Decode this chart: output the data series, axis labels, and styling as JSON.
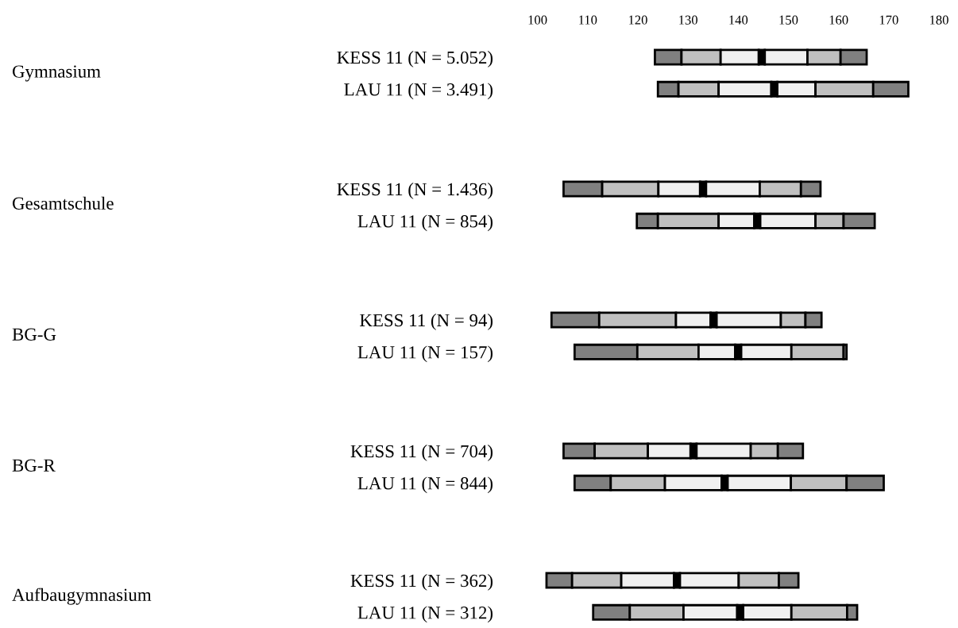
{
  "chart_data": [
    {
      "type": "bar",
      "orientation": "horizontal",
      "ylabel": "Gymnasium",
      "categories": [
        "KESS 11 (N = 5.052)",
        "LAU 11 (N = 3.491)"
      ],
      "series": [
        {
          "color": "#808080",
          "base": [
            123.4,
            124.0
          ],
          "values": [
            5.3,
            4.1
          ]
        },
        {
          "color": "#c0c0c0",
          "base": [
            128.7,
            128.1
          ],
          "values": [
            7.8,
            8.0
          ]
        },
        {
          "color": "#f0f0f0",
          "base": [
            136.5,
            136.1
          ],
          "values": [
            7.6,
            10.5
          ]
        },
        {
          "color": "#000000",
          "base": [
            144.1,
            146.6
          ],
          "values": [
            1.2,
            1.2
          ]
        },
        {
          "color": "#f0f0f0",
          "base": [
            145.3,
            147.8
          ],
          "values": [
            8.5,
            7.6
          ]
        },
        {
          "color": "#c0c0c0",
          "base": [
            153.8,
            155.4
          ],
          "values": [
            6.6,
            11.5
          ]
        },
        {
          "color": "#808080",
          "base": [
            160.4,
            166.9
          ],
          "values": [
            5.2,
            7.0
          ]
        }
      ],
      "xlim": [
        100,
        180
      ],
      "xticks": [
        100,
        110,
        120,
        130,
        140,
        150,
        160,
        170,
        180
      ]
    },
    {
      "type": "bar",
      "orientation": "horizontal",
      "ylabel": "Gesamtschule",
      "categories": [
        "KESS 11 (N = 1.436)",
        "LAU 11 (N = 854)"
      ],
      "series": [
        {
          "color": "#808080",
          "base": [
            105.2,
            119.8
          ],
          "values": [
            7.7,
            4.2
          ]
        },
        {
          "color": "#c0c0c0",
          "base": [
            112.9,
            124.0
          ],
          "values": [
            11.2,
            12.1
          ]
        },
        {
          "color": "#f0f0f0",
          "base": [
            124.1,
            136.1
          ],
          "values": [
            8.3,
            7.1
          ]
        },
        {
          "color": "#000000",
          "base": [
            132.4,
            143.2
          ],
          "values": [
            1.2,
            1.2
          ]
        },
        {
          "color": "#f0f0f0",
          "base": [
            133.6,
            144.4
          ],
          "values": [
            10.7,
            11.0
          ]
        },
        {
          "color": "#c0c0c0",
          "base": [
            144.3,
            155.4
          ],
          "values": [
            8.2,
            5.6
          ]
        },
        {
          "color": "#808080",
          "base": [
            152.5,
            161.0
          ],
          "values": [
            3.9,
            6.2
          ]
        }
      ],
      "xlim": [
        100,
        180
      ],
      "tick_labels": "y"
    },
    {
      "type": "bar",
      "orientation": "horizontal",
      "ylabel": "BG-G",
      "categories": [
        "KESS 11 (N = 94)",
        "LAU 11 (N = 157)"
      ],
      "series": [
        {
          "color": "#808080",
          "base": [
            102.8,
            107.4
          ],
          "values": [
            9.5,
            12.5
          ]
        },
        {
          "color": "#c0c0c0",
          "base": [
            112.3,
            119.9
          ],
          "values": [
            15.3,
            12.2
          ]
        },
        {
          "color": "#f0f0f0",
          "base": [
            127.6,
            132.1
          ],
          "values": [
            6.9,
            7.3
          ]
        },
        {
          "color": "#000000",
          "base": [
            134.5,
            139.4
          ],
          "values": [
            1.2,
            1.2
          ]
        },
        {
          "color": "#f0f0f0",
          "base": [
            135.7,
            140.6
          ],
          "values": [
            12.8,
            10.0
          ]
        },
        {
          "color": "#c0c0c0",
          "base": [
            148.5,
            150.6
          ],
          "values": [
            4.9,
            10.4
          ]
        },
        {
          "color": "#808080",
          "base": [
            153.4,
            161.0
          ],
          "values": [
            3.2,
            0.6
          ]
        }
      ],
      "xlim": [
        100,
        180
      ],
      "tick_labels": "y"
    },
    {
      "type": "bar",
      "orientation": "horizontal",
      "ylabel": "BG-R",
      "categories": [
        "KESS 11 (N = 704)",
        "LAU 11 (N = 844)"
      ],
      "series": [
        {
          "color": "#808080",
          "base": [
            105.2,
            107.4
          ],
          "values": [
            6.2,
            7.2
          ]
        },
        {
          "color": "#c0c0c0",
          "base": [
            111.4,
            114.6
          ],
          "values": [
            10.6,
            10.8
          ]
        },
        {
          "color": "#f0f0f0",
          "base": [
            122.0,
            125.4
          ],
          "values": [
            8.5,
            11.3
          ]
        },
        {
          "color": "#000000",
          "base": [
            130.5,
            136.7
          ],
          "values": [
            1.2,
            1.2
          ]
        },
        {
          "color": "#f0f0f0",
          "base": [
            131.7,
            137.9
          ],
          "values": [
            10.8,
            12.6
          ]
        },
        {
          "color": "#c0c0c0",
          "base": [
            142.5,
            150.5
          ],
          "values": [
            5.4,
            11.1
          ]
        },
        {
          "color": "#808080",
          "base": [
            147.9,
            161.6
          ],
          "values": [
            5.0,
            7.4
          ]
        }
      ],
      "xlim": [
        100,
        180
      ],
      "tick_labels": "y"
    },
    {
      "type": "bar",
      "orientation": "horizontal",
      "ylabel": "Aufbaugymnasium",
      "categories": [
        "KESS 11 (N = 362)",
        "LAU 11 (N = 312)"
      ],
      "series": [
        {
          "color": "#808080",
          "base": [
            101.8,
            111.1
          ],
          "values": [
            5.1,
            7.3
          ]
        },
        {
          "color": "#c0c0c0",
          "base": [
            106.9,
            118.4
          ],
          "values": [
            9.8,
            10.7
          ]
        },
        {
          "color": "#f0f0f0",
          "base": [
            116.7,
            129.1
          ],
          "values": [
            10.5,
            10.7
          ]
        },
        {
          "color": "#000000",
          "base": [
            127.2,
            139.8
          ],
          "values": [
            1.2,
            1.2
          ]
        },
        {
          "color": "#f0f0f0",
          "base": [
            128.4,
            141.0
          ],
          "values": [
            11.7,
            9.6
          ]
        },
        {
          "color": "#c0c0c0",
          "base": [
            140.1,
            150.6
          ],
          "values": [
            8.0,
            11.1
          ]
        },
        {
          "color": "#808080",
          "base": [
            148.1,
            161.7
          ],
          "values": [
            3.9,
            2.0
          ]
        }
      ],
      "xlim": [
        100,
        180
      ],
      "tick_labels": "y"
    }
  ]
}
